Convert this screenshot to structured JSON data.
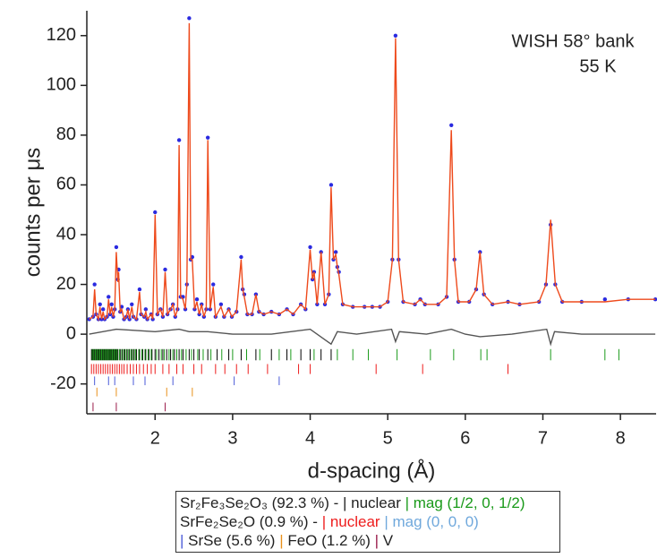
{
  "chart_data": {
    "type": "rietveld",
    "annotations": [
      "WISH 58° bank",
      "55 K"
    ],
    "x_label": "d-spacing (Å)",
    "y_label": "counts per μs",
    "xlim": [
      1.12,
      8.46
    ],
    "ylim": [
      -32,
      130
    ],
    "xticks": [
      2,
      3,
      4,
      5,
      6,
      7,
      8
    ],
    "yticks": [
      -20,
      0,
      20,
      40,
      60,
      80,
      100,
      120
    ],
    "x": [
      1.15,
      1.2,
      1.22,
      1.24,
      1.27,
      1.29,
      1.31,
      1.33,
      1.35,
      1.38,
      1.4,
      1.42,
      1.44,
      1.46,
      1.48,
      1.5,
      1.52,
      1.53,
      1.55,
      1.57,
      1.6,
      1.63,
      1.65,
      1.67,
      1.7,
      1.72,
      1.76,
      1.8,
      1.82,
      1.86,
      1.88,
      1.9,
      1.95,
      1.97,
      2.0,
      2.03,
      2.07,
      2.1,
      2.13,
      2.16,
      2.2,
      2.23,
      2.26,
      2.29,
      2.31,
      2.33,
      2.36,
      2.39,
      2.41,
      2.44,
      2.46,
      2.48,
      2.51,
      2.54,
      2.57,
      2.6,
      2.63,
      2.66,
      2.68,
      2.71,
      2.75,
      2.78,
      2.85,
      2.89,
      2.95,
      2.99,
      3.05,
      3.11,
      3.13,
      3.15,
      3.19,
      3.25,
      3.3,
      3.34,
      3.4,
      3.5,
      3.6,
      3.7,
      3.78,
      3.88,
      3.94,
      4.0,
      4.03,
      4.05,
      4.09,
      4.14,
      4.19,
      4.24,
      4.27,
      4.3,
      4.33,
      4.35,
      4.37,
      4.42,
      4.55,
      4.7,
      4.8,
      4.9,
      5.0,
      5.06,
      5.1,
      5.14,
      5.2,
      5.35,
      5.42,
      5.48,
      5.65,
      5.76,
      5.82,
      5.86,
      5.91,
      6.05,
      6.14,
      6.19,
      6.24,
      6.35,
      6.55,
      6.7,
      6.95,
      7.04,
      7.1,
      7.16,
      7.25,
      7.5,
      7.8,
      8.1,
      8.45
    ],
    "series": [
      {
        "style": "markers",
        "color": "#2a2ae0",
        "values": [
          6,
          7,
          20,
          8,
          6,
          12,
          6,
          10,
          6,
          7,
          15,
          8,
          12,
          7,
          10,
          35,
          22,
          26,
          9,
          11,
          6,
          7,
          10,
          6,
          12,
          7,
          6,
          18,
          8,
          7,
          10,
          6,
          8,
          6,
          49,
          8,
          10,
          7,
          26,
          8,
          10,
          12,
          7,
          10,
          78,
          15,
          15,
          10,
          20,
          127,
          30,
          31,
          10,
          14,
          8,
          12,
          7,
          10,
          79,
          10,
          20,
          7,
          12,
          7,
          10,
          7,
          9,
          31,
          18,
          16,
          8,
          8,
          16,
          9,
          8,
          9,
          8,
          10,
          8,
          12,
          10,
          35,
          22,
          25,
          12,
          33,
          12,
          16,
          60,
          30,
          33,
          27,
          25,
          12,
          11,
          11,
          11,
          11,
          13,
          30,
          120,
          30,
          13,
          12,
          14,
          12,
          12,
          15,
          84,
          30,
          13,
          13,
          18,
          33,
          16,
          12,
          13,
          12,
          13,
          20,
          44,
          20,
          13,
          13,
          14,
          14,
          14
        ]
      },
      {
        "style": "line",
        "color": "#ee4a1c",
        "values": [
          6,
          7,
          18,
          8,
          6,
          11,
          6,
          9,
          6,
          7,
          14,
          8,
          11,
          7,
          10,
          33,
          21,
          25,
          9,
          10,
          6,
          7,
          10,
          6,
          11,
          7,
          6,
          17,
          8,
          7,
          9,
          6,
          8,
          6,
          48,
          8,
          10,
          7,
          25,
          8,
          10,
          12,
          7,
          10,
          76,
          15,
          14,
          10,
          20,
          125,
          30,
          30,
          10,
          13,
          8,
          12,
          7,
          10,
          78,
          10,
          19,
          7,
          11,
          7,
          10,
          7,
          9,
          30,
          18,
          15,
          8,
          8,
          16,
          9,
          8,
          9,
          8,
          10,
          8,
          12,
          10,
          34,
          22,
          25,
          12,
          33,
          12,
          16,
          59,
          30,
          32,
          27,
          24,
          12,
          11,
          11,
          11,
          11,
          13,
          30,
          119,
          30,
          13,
          12,
          14,
          12,
          12,
          15,
          82,
          30,
          13,
          13,
          18,
          33,
          16,
          12,
          13,
          12,
          13,
          20,
          46,
          20,
          13,
          13,
          13,
          14,
          14
        ]
      },
      {
        "style": "line",
        "color": "#555555",
        "x": [
          1.15,
          1.5,
          2.0,
          2.31,
          2.44,
          2.68,
          3.0,
          3.5,
          4.0,
          4.27,
          4.35,
          4.6,
          5.05,
          5.1,
          5.15,
          5.5,
          5.82,
          6.0,
          6.19,
          6.6,
          7.05,
          7.1,
          7.15,
          7.5,
          8.45
        ],
        "values": [
          0,
          2,
          1,
          2,
          1,
          1,
          0,
          0,
          2,
          -4,
          1,
          0,
          2,
          -3,
          1,
          0,
          2,
          0,
          -1,
          0,
          2,
          -4,
          1,
          0,
          0
        ]
      }
    ],
    "reflections": [
      {
        "color": "#000000",
        "positions": [
          1.18,
          1.2,
          1.22,
          1.24,
          1.26,
          1.28,
          1.3,
          1.32,
          1.34,
          1.36,
          1.38,
          1.4,
          1.42,
          1.44,
          1.46,
          1.48,
          1.5,
          1.52,
          1.55,
          1.58,
          1.61,
          1.64,
          1.67,
          1.7,
          1.73,
          1.76,
          1.8,
          1.84,
          1.88,
          1.92,
          1.96,
          2.0,
          2.05,
          2.1,
          2.15,
          2.2,
          2.25,
          2.31,
          2.36,
          2.44,
          2.5,
          2.57,
          2.68,
          2.8,
          2.95,
          3.11,
          3.3,
          3.5,
          3.7,
          3.88,
          4.0,
          4.14,
          4.27
        ]
      },
      {
        "color": "#1a9a1a",
        "positions": [
          1.19,
          1.21,
          1.23,
          1.25,
          1.27,
          1.29,
          1.31,
          1.33,
          1.35,
          1.37,
          1.39,
          1.41,
          1.43,
          1.45,
          1.47,
          1.49,
          1.51,
          1.54,
          1.57,
          1.6,
          1.63,
          1.66,
          1.69,
          1.72,
          1.75,
          1.79,
          1.83,
          1.87,
          1.91,
          1.95,
          2.02,
          2.08,
          2.12,
          2.18,
          2.23,
          2.28,
          2.34,
          2.4,
          2.47,
          2.55,
          2.62,
          2.72,
          2.86,
          3.0,
          3.18,
          3.35,
          3.6,
          3.75,
          4.05,
          4.35,
          4.55,
          4.75,
          5.12,
          5.55,
          5.85,
          6.2,
          6.28,
          7.1,
          7.8,
          7.98
        ]
      },
      {
        "color": "#ee1c1c",
        "positions": [
          1.18,
          1.21,
          1.24,
          1.27,
          1.3,
          1.33,
          1.36,
          1.39,
          1.42,
          1.45,
          1.48,
          1.51,
          1.54,
          1.57,
          1.6,
          1.64,
          1.68,
          1.72,
          1.76,
          1.8,
          1.85,
          1.9,
          1.95,
          2.0,
          2.1,
          2.18,
          2.28,
          2.36,
          2.5,
          2.6,
          2.78,
          2.9,
          3.05,
          3.2,
          3.45,
          3.85,
          4.0,
          4.85,
          5.45,
          6.55
        ]
      },
      {
        "color": "#4a5ad8",
        "positions": [
          1.22,
          1.4,
          1.48,
          1.72,
          1.87,
          2.23,
          3.02,
          3.6
        ]
      },
      {
        "color": "#e8901a",
        "positions": [
          1.25,
          1.5,
          2.15,
          2.48
        ]
      },
      {
        "color": "#9a1a4a",
        "positions": [
          1.2,
          1.5,
          2.13
        ]
      }
    ],
    "legend": [
      [
        {
          "text": "Sr₂Fe₃Se₂O₃ (92.3 %) - | nuclear "
        },
        {
          "text": "| mag (1/2, 0, 1/2)",
          "color": "#1a9a1a"
        }
      ],
      [
        {
          "text": "SrFe₂Se₂O (0.9 %) - "
        },
        {
          "text": "| nuclear",
          "color": "#ee1c1c"
        },
        {
          "text": " | mag (0, 0, 0)",
          "color": "#6fa8dc"
        }
      ],
      [
        {
          "text": "|",
          "color": "#4a5ad8"
        },
        {
          "text": " SrSe (5.6 %) "
        },
        {
          "text": "|",
          "color": "#e8901a"
        },
        {
          "text": " FeO (1.2 %) "
        },
        {
          "text": "|",
          "color": "#9a1a4a"
        },
        {
          "text": " V"
        }
      ]
    ]
  }
}
